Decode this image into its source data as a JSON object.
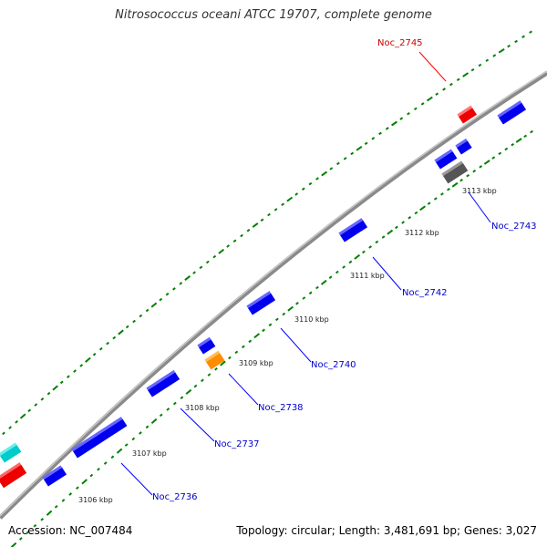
{
  "title": "Nitrosococcus oceani ATCC 19707, complete genome",
  "footer": {
    "accession": "Accession: NC_007484",
    "summary": "Topology: circular; Length: 3,481,691 bp; Genes: 3,027"
  },
  "colors": {
    "forward_gene": "#0000ff",
    "reverse_gene": "#0000ff",
    "highlight_gene": "#ff0000",
    "orange_gene": "#ff8c00",
    "gray_gene": "#666666",
    "cyan_gene": "#00cccc",
    "backbone": "#888888",
    "tick": "#008000",
    "label_line": "#0000ff",
    "highlight_label": "#cc0000"
  },
  "ticks": [
    "3106 kbp",
    "3107 kbp",
    "3108 kbp",
    "3109 kbp",
    "3110 kbp",
    "3111 kbp",
    "3112 kbp",
    "3113 kbp"
  ],
  "gene_labels": [
    {
      "name": "Noc_2745",
      "color": "red"
    },
    {
      "name": "Noc_2743",
      "color": "blue"
    },
    {
      "name": "Noc_2742",
      "color": "blue"
    },
    {
      "name": "Noc_2740",
      "color": "blue"
    },
    {
      "name": "Noc_2738",
      "color": "blue"
    },
    {
      "name": "Noc_2737",
      "color": "blue"
    },
    {
      "name": "Noc_2736",
      "color": "blue"
    }
  ]
}
